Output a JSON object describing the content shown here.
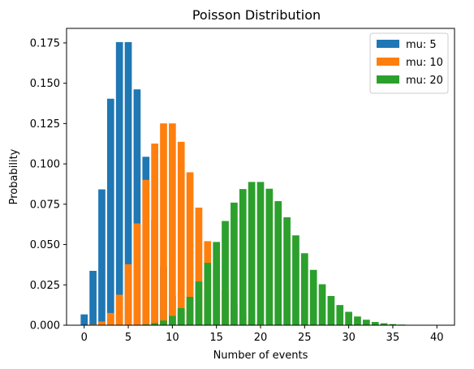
{
  "chart_data": {
    "type": "bar",
    "title": "Poisson Distribution",
    "xlabel": "Number of events",
    "ylabel": "Probability",
    "xlim": [
      -2,
      42
    ],
    "ylim": [
      0,
      0.184
    ],
    "xticks": [
      0,
      5,
      10,
      15,
      20,
      25,
      30,
      35,
      40
    ],
    "yticks": [
      0.0,
      0.025,
      0.05,
      0.075,
      0.1,
      0.125,
      0.15,
      0.175
    ],
    "grid": false,
    "legend": "top-right",
    "x": [
      0,
      1,
      2,
      3,
      4,
      5,
      6,
      7,
      8,
      9,
      10,
      11,
      12,
      13,
      14,
      15,
      16,
      17,
      18,
      19,
      20,
      21,
      22,
      23,
      24,
      25,
      26,
      27,
      28,
      29,
      30,
      31,
      32,
      33,
      34,
      35,
      36,
      37,
      38,
      39,
      40
    ],
    "series": [
      {
        "name": "mu: 5",
        "color": "#1f77b4",
        "values": [
          0.0067,
          0.0337,
          0.0842,
          0.1404,
          0.1755,
          0.1755,
          0.1462,
          0.1044,
          0.0653,
          0.0363,
          0.0181,
          0.0082,
          0.0034,
          0.0013,
          0.0005,
          0.0002,
          0.0,
          0.0,
          0.0,
          0.0,
          0.0,
          0.0,
          0.0,
          0.0,
          0.0,
          0.0,
          0.0,
          0.0,
          0.0,
          0.0,
          0.0,
          0.0,
          0.0,
          0.0,
          0.0,
          0.0,
          0.0,
          0.0,
          0.0,
          0.0,
          0.0
        ]
      },
      {
        "name": "mu: 10",
        "color": "#ff7f0e",
        "values": [
          0.0,
          0.0005,
          0.0023,
          0.0076,
          0.0189,
          0.0378,
          0.0631,
          0.0901,
          0.1126,
          0.1251,
          0.1251,
          0.1137,
          0.0948,
          0.0729,
          0.0521,
          0.0347,
          0.0217,
          0.0128,
          0.0071,
          0.0037,
          0.0019,
          0.0009,
          0.0004,
          0.0002,
          0.0001,
          0.0,
          0.0,
          0.0,
          0.0,
          0.0,
          0.0,
          0.0,
          0.0,
          0.0,
          0.0,
          0.0,
          0.0,
          0.0,
          0.0,
          0.0,
          0.0
        ]
      },
      {
        "name": "mu: 20",
        "color": "#2ca02c",
        "values": [
          0.0,
          0.0,
          0.0,
          0.0,
          0.0,
          0.0001,
          0.0002,
          0.0005,
          0.0013,
          0.0029,
          0.0058,
          0.0106,
          0.0176,
          0.0271,
          0.0387,
          0.0516,
          0.0646,
          0.076,
          0.0844,
          0.0888,
          0.0888,
          0.0846,
          0.0769,
          0.0669,
          0.0557,
          0.0446,
          0.0343,
          0.0254,
          0.0181,
          0.0125,
          0.0083,
          0.0054,
          0.0034,
          0.002,
          0.0012,
          0.0007,
          0.0004,
          0.0002,
          0.0001,
          0.0001,
          0.0
        ]
      }
    ]
  }
}
